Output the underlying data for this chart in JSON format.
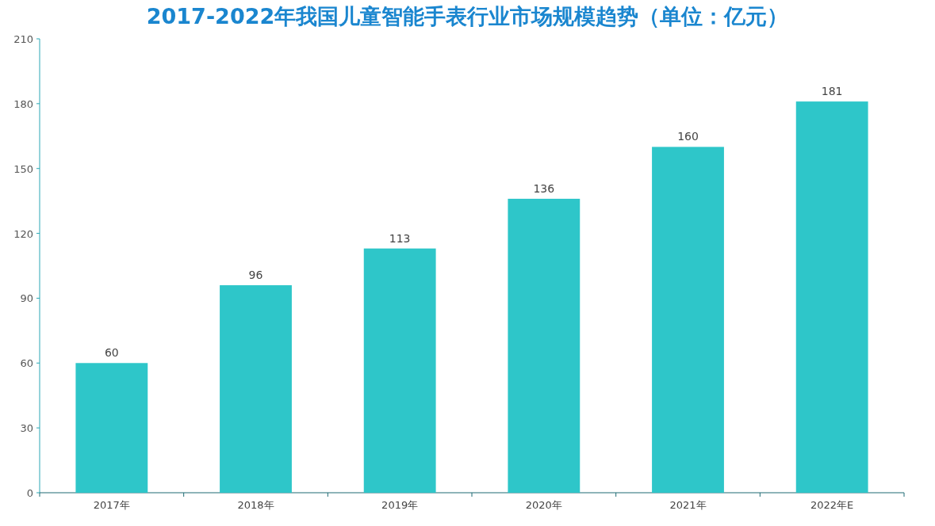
{
  "chart_data": {
    "type": "bar",
    "title": "2017-2022年我国儿童智能手表行业市场规模趋势（单位：亿元）",
    "categories": [
      "2017年",
      "2018年",
      "2019年",
      "2020年",
      "2021年",
      "2022年E"
    ],
    "values": [
      60,
      96,
      113,
      136,
      160,
      181
    ],
    "color": "#2ec6c9",
    "ylim": [
      0,
      210
    ],
    "yticks": [
      0,
      30,
      60,
      90,
      120,
      150,
      180,
      210
    ],
    "data_labels": true
  }
}
